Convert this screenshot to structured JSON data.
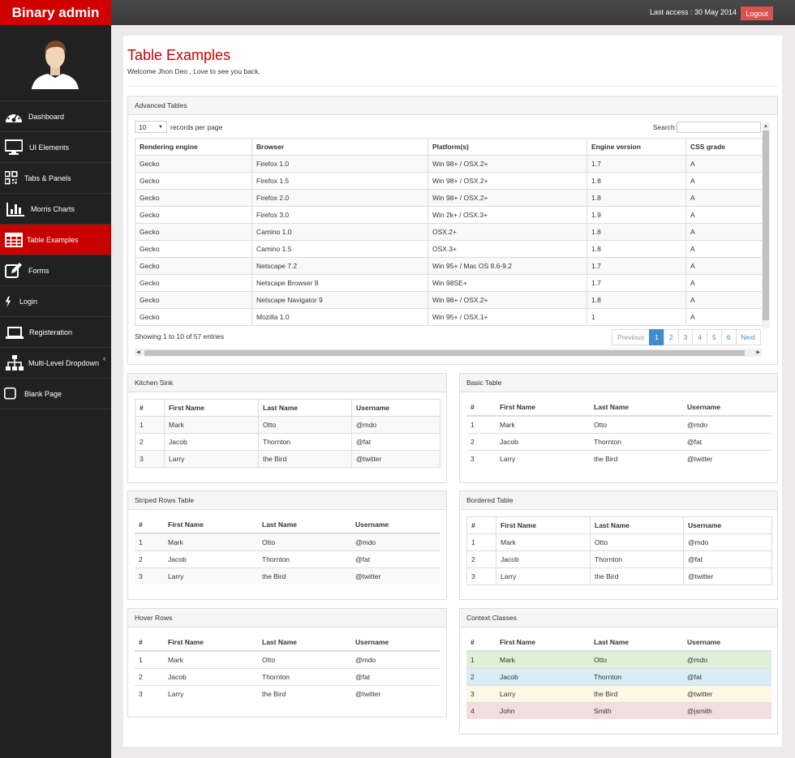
{
  "app": {
    "brand": "Binary admin",
    "last_access": "Last access : 30 May 2014",
    "logout": "Logout"
  },
  "sidebar": {
    "items": [
      {
        "label": "Dashboard",
        "icon": "dashboard-icon"
      },
      {
        "label": "UI Elements",
        "icon": "desktop-icon"
      },
      {
        "label": "Tabs & Panels",
        "icon": "qrcode-icon"
      },
      {
        "label": "Morris Charts",
        "icon": "bar-chart-icon"
      },
      {
        "label": "Table Examples",
        "icon": "table-icon"
      },
      {
        "label": "Forms",
        "icon": "edit-icon"
      },
      {
        "label": "Login",
        "icon": "bolt-icon"
      },
      {
        "label": "Registeration",
        "icon": "laptop-icon"
      },
      {
        "label": "Multi-Level Dropdown",
        "icon": "sitemap-icon"
      },
      {
        "label": "Blank Page",
        "icon": "square-icon"
      }
    ],
    "active_index": 4,
    "collapse_caret": "‹"
  },
  "page": {
    "title": "Table Examples",
    "welcome": "Welcome Jhon Deo , Love to see you back."
  },
  "advanced": {
    "title": "Advanced Tables",
    "length_value": "10",
    "length_suffix": "records per page",
    "search_label": "Search:",
    "columns": [
      "Rendering engine",
      "Browser",
      "Platform(s)",
      "Engine version",
      "CSS grade"
    ],
    "rows": [
      [
        "Gecko",
        "Firefox 1.0",
        "Win 98+ / OSX.2+",
        "1.7",
        "A"
      ],
      [
        "Gecko",
        "Firefox 1.5",
        "Win 98+ / OSX.2+",
        "1.8",
        "A"
      ],
      [
        "Gecko",
        "Firefox 2.0",
        "Win 98+ / OSX.2+",
        "1.8",
        "A"
      ],
      [
        "Gecko",
        "Firefox 3.0",
        "Win 2k+ / OSX.3+",
        "1.9",
        "A"
      ],
      [
        "Gecko",
        "Camino 1.0",
        "OSX.2+",
        "1.8",
        "A"
      ],
      [
        "Gecko",
        "Camino 1.5",
        "OSX.3+",
        "1.8",
        "A"
      ],
      [
        "Gecko",
        "Netscape 7.2",
        "Win 95+ / Mac OS 8.6-9.2",
        "1.7",
        "A"
      ],
      [
        "Gecko",
        "Netscape Browser 8",
        "Win 98SE+",
        "1.7",
        "A"
      ],
      [
        "Gecko",
        "Netscape Navigator 9",
        "Win 98+ / OSX.2+",
        "1.8",
        "A"
      ],
      [
        "Gecko",
        "Mozilla 1.0",
        "Win 95+ / OSX.1+",
        "1",
        "A"
      ]
    ],
    "showing": "Showing 1 to 10 of 57 entries",
    "pager": [
      "Previous",
      "1",
      "2",
      "3",
      "4",
      "5",
      "6",
      "Next"
    ]
  },
  "people_columns": [
    "#",
    "First Name",
    "Last Name",
    "Username"
  ],
  "people_rows": [
    [
      "1",
      "Mark",
      "Otto",
      "@mdo"
    ],
    [
      "2",
      "Jacob",
      "Thornton",
      "@fat"
    ],
    [
      "3",
      "Larry",
      "the Bird",
      "@twitter"
    ]
  ],
  "context_rows": [
    [
      "1",
      "Mark",
      "Otto",
      "@mdo"
    ],
    [
      "2",
      "Jacob",
      "Thornton",
      "@fat"
    ],
    [
      "3",
      "Larry",
      "the Bird",
      "@twitter"
    ],
    [
      "4",
      "John",
      "Smith",
      "@jsmith"
    ]
  ],
  "panels": {
    "kitchen": "Kitchen Sink",
    "basic": "Basic Table",
    "striped": "Striped Rows Table",
    "bordered": "Bordered Table",
    "hover": "Hover Rows",
    "context": "Context Classes"
  },
  "colors": {
    "brand_red": "#d00000",
    "active_red": "#c90000",
    "sidebar_bg": "#212121",
    "link_blue": "#428bca"
  }
}
